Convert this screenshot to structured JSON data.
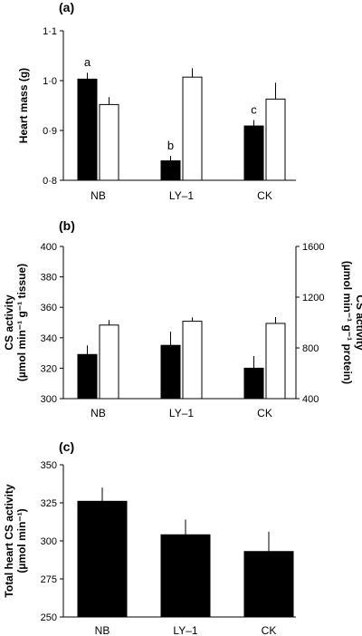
{
  "chart_data": [
    {
      "panel_label": "(a)",
      "type": "bar",
      "categories": [
        "NB",
        "LY–1",
        "CK"
      ],
      "ylabel": "Heart mass (g)",
      "ylim": [
        0.8,
        1.1
      ],
      "yticks": [
        "0·8",
        "0·9",
        "1·0",
        "1·1"
      ],
      "series": [
        {
          "fill": "#000000",
          "values": [
            1.003,
            0.839,
            0.909
          ],
          "errors": [
            0.013,
            0.01,
            0.012
          ],
          "annotations": [
            "a",
            "b",
            "c"
          ]
        },
        {
          "fill": "#ffffff",
          "values": [
            0.952,
            1.007,
            0.963
          ],
          "errors": [
            0.015,
            0.018,
            0.033
          ],
          "annotations": [
            "",
            "",
            ""
          ]
        }
      ]
    },
    {
      "panel_label": "(b)",
      "type": "bar",
      "categories": [
        "NB",
        "LY–1",
        "CK"
      ],
      "ylabel": [
        "CS activity",
        "(µmol min⁻¹ g⁻¹ tissue)"
      ],
      "ylim": [
        300,
        400
      ],
      "yticks": [
        "300",
        "320",
        "340",
        "360",
        "380",
        "400"
      ],
      "y2label": [
        "CS activity",
        "(µmol min⁻¹ g⁻¹ protein)"
      ],
      "y2lim": [
        400,
        1600
      ],
      "y2ticks": [
        "400",
        "800",
        "1200",
        "1600"
      ],
      "series": [
        {
          "fill": "#000000",
          "axis": "left",
          "values": [
            329,
            335,
            320
          ],
          "errors": [
            6,
            9,
            8
          ]
        },
        {
          "fill": "#ffffff",
          "axis": "right",
          "values": [
            980,
            1010,
            993
          ],
          "errors": [
            40,
            30,
            50
          ]
        }
      ]
    },
    {
      "panel_label": "(c)",
      "type": "bar",
      "categories": [
        "NB",
        "LY–1",
        "CK"
      ],
      "ylabel": [
        "Total heart CS activity",
        "(µmol min⁻¹)"
      ],
      "ylim": [
        250,
        350
      ],
      "yticks": [
        "250",
        "275",
        "300",
        "325",
        "350"
      ],
      "series": [
        {
          "fill": "#000000",
          "values": [
            326,
            304,
            293
          ],
          "errors": [
            9,
            10,
            13
          ]
        }
      ]
    }
  ]
}
